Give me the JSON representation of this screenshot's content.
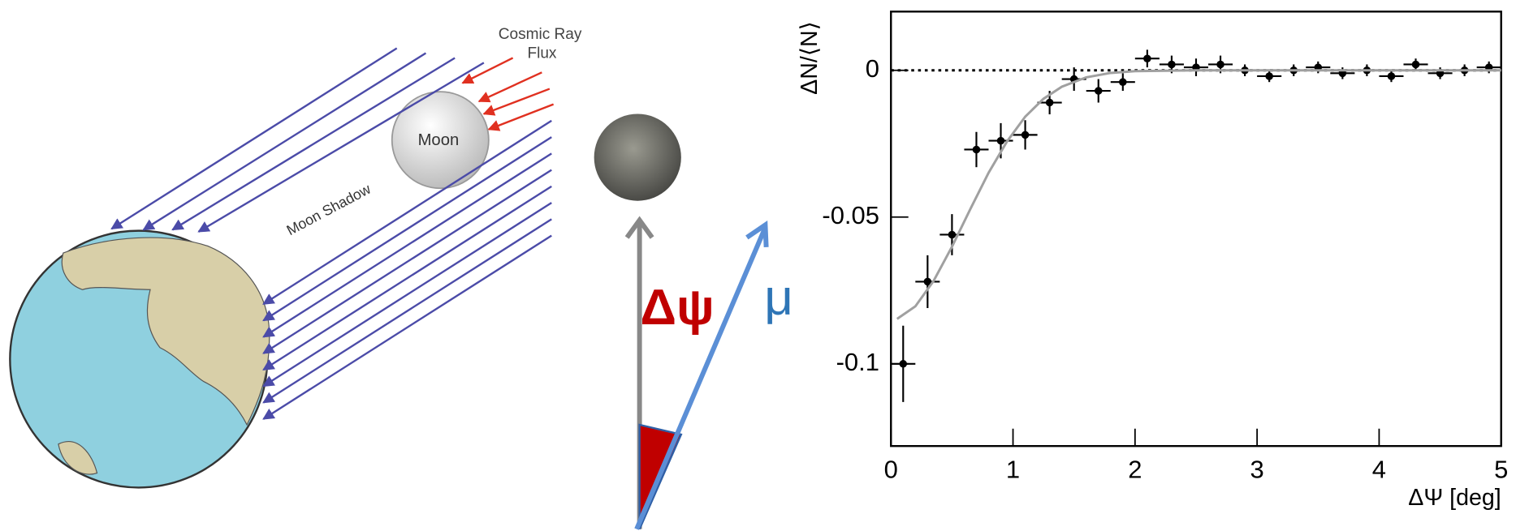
{
  "diagram": {
    "flux_label": [
      "Cosmic Ray",
      "Flux"
    ],
    "moon_label": "Moon",
    "shadow_label": "Moon Shadow",
    "angle_label": "Δψ",
    "muon_label": "μ"
  },
  "chart_data": {
    "type": "scatter",
    "x_label": "ΔΨ [deg]",
    "y_label": "ΔN/⟨N⟩",
    "xlim": [
      0,
      5
    ],
    "xticks": [
      0,
      1,
      2,
      3,
      4,
      5
    ],
    "ylim": [
      -0.128,
      0.02
    ],
    "yticks": [
      -0.1,
      -0.05,
      0
    ],
    "zero_line": true,
    "series": [
      {
        "color": "#000000",
        "x": [
          0.1,
          0.3,
          0.5,
          0.7,
          0.9,
          1.1,
          1.3,
          1.5,
          1.7,
          1.9,
          2.1,
          2.3,
          2.5,
          2.7,
          2.9,
          3.1,
          3.3,
          3.5,
          3.7,
          3.9,
          4.1,
          4.3,
          4.5,
          4.7,
          4.9
        ],
        "values": [
          -0.1,
          -0.072,
          -0.056,
          -0.027,
          -0.024,
          -0.022,
          -0.011,
          -0.003,
          -0.007,
          -0.004,
          0.004,
          0.002,
          0.001,
          0.002,
          0.0,
          -0.002,
          0.0,
          0.001,
          -0.001,
          0.0,
          -0.002,
          0.002,
          -0.001,
          0.0,
          0.001
        ],
        "errors": [
          0.013,
          0.009,
          0.007,
          0.006,
          0.006,
          0.005,
          0.004,
          0.004,
          0.004,
          0.003,
          0.003,
          0.003,
          0.003,
          0.003,
          0.002,
          0.002,
          0.002,
          0.002,
          0.002,
          0.002,
          0.002,
          0.002,
          0.002,
          0.002,
          0.002
        ],
        "xerr": [
          0.1,
          0.1,
          0.1,
          0.1,
          0.1,
          0.1,
          0.1,
          0.1,
          0.1,
          0.1,
          0.1,
          0.1,
          0.1,
          0.1,
          0.1,
          0.1,
          0.1,
          0.1,
          0.1,
          0.1,
          0.1,
          0.1,
          0.1,
          0.1,
          0.1
        ]
      },
      {
        "color": "#a0a0a0",
        "style": "line",
        "x": [
          0.05,
          0.2,
          0.35,
          0.5,
          0.65,
          0.8,
          0.95,
          1.1,
          1.25,
          1.4,
          1.6,
          1.8,
          2.0,
          2.5,
          3,
          4,
          5
        ],
        "values": [
          -0.0847,
          -0.0804,
          -0.0717,
          -0.0601,
          -0.0473,
          -0.0349,
          -0.0243,
          -0.0158,
          -0.0097,
          -0.0056,
          -0.0024,
          -0.0009,
          -0.0003,
          0,
          0,
          0,
          0
        ]
      }
    ]
  }
}
